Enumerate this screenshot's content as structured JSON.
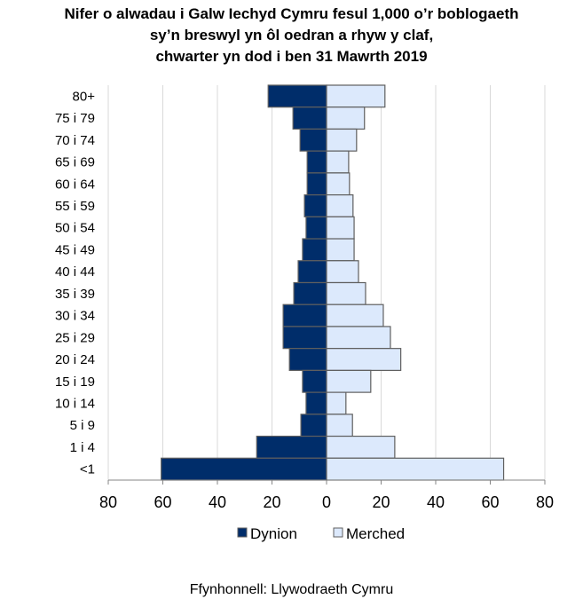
{
  "chart_data": {
    "type": "bar",
    "orientation": "horizontal-pyramid",
    "title_lines": [
      "Nifer o alwadau i Galw Iechyd Cymru fesul 1,000 o’r boblogaeth",
      "sy’n breswyl yn ôl oedran a rhyw y claf,",
      "chwarter yn dod i ben 31 Mawrth 2019"
    ],
    "categories": [
      "80+",
      "75 i 79",
      "70 i 74",
      "65 i 69",
      "60 i 64",
      "55 i 59",
      "50 i 54",
      "45 i 49",
      "40 i 44",
      "35 i 39",
      "30 i 34",
      "25 i 29",
      "20 i 24",
      "15 i 19",
      "10 i 14",
      "5 i 9",
      "1 i 4",
      "<1"
    ],
    "series": [
      {
        "name": "Dynion",
        "color": "#002d6a",
        "side": "left",
        "values": [
          21.4,
          12.3,
          9.7,
          7.1,
          7.1,
          8.1,
          7.5,
          8.8,
          10.4,
          12.0,
          15.9,
          15.9,
          13.6,
          8.8,
          7.5,
          9.4,
          25.6,
          60.6
        ]
      },
      {
        "name": "Merched",
        "color": "#dce9fc",
        "side": "right",
        "values": [
          21.4,
          13.9,
          11.0,
          8.1,
          8.4,
          9.7,
          10.1,
          10.1,
          11.7,
          14.3,
          20.8,
          23.4,
          27.2,
          16.2,
          7.1,
          9.5,
          25.0,
          64.9
        ]
      }
    ],
    "xlim": [
      -80,
      80
    ],
    "xticks": [
      "80",
      "60",
      "40",
      "20",
      "0",
      "20",
      "40",
      "60",
      "80"
    ],
    "grid": true,
    "legend": "bottom"
  },
  "source": "Ffynhonnell: Llywodraeth Cymru"
}
